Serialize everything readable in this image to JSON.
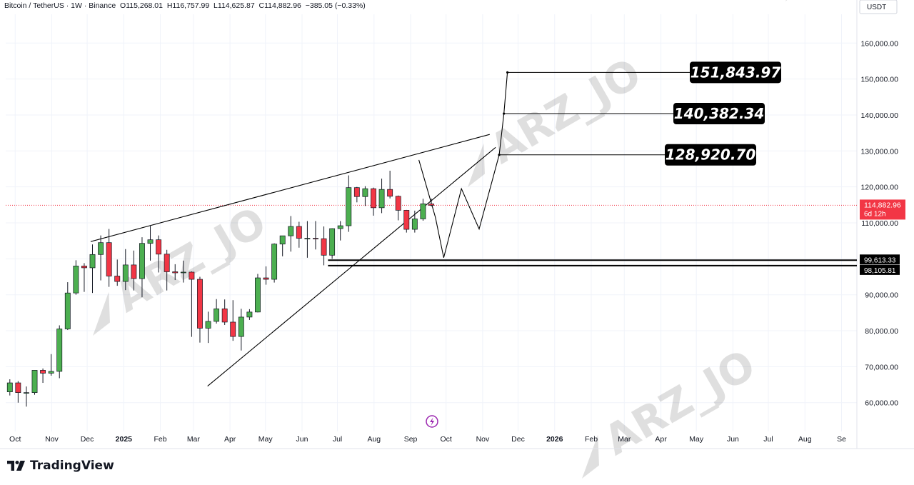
{
  "header": {
    "symbol": "Bitcoin / TetherUS · 1W · Binance",
    "open": "O115,268.01",
    "high": "H116,757.99",
    "low": "L114,625.87",
    "close": "C114,882.96",
    "change": "−385.05 (−0.33%)"
  },
  "currency_label": "USDT",
  "brand": "TradingView",
  "watermark": "ARZ_JO",
  "colors": {
    "up": "#4caf50",
    "down": "#f23645",
    "last_price_bg": "#f23645",
    "line": "#000000",
    "grid": "#f0f3fa",
    "target_bg": "#000000"
  },
  "chart_data": {
    "type": "candlestick",
    "timeframe": "1W",
    "ylim": [
      52000,
      168000
    ],
    "y_ticks": [
      60000,
      70000,
      80000,
      90000,
      100000,
      110000,
      120000,
      130000,
      140000,
      150000,
      160000
    ],
    "y_tick_labels": [
      "60,000.00",
      "70,000.00",
      "80,000.00",
      "90,000.00",
      "100,000.00",
      "110,000.00",
      "120,000.00",
      "130,000.00",
      "140,000.00",
      "150,000.00",
      "160,000.00"
    ],
    "x_start": "2024-09-23",
    "x_end": "2026-09-14",
    "x_ticks": [
      {
        "date": "2024-10-01",
        "label": "Oct"
      },
      {
        "date": "2024-11-01",
        "label": "Nov"
      },
      {
        "date": "2024-12-01",
        "label": "Dec"
      },
      {
        "date": "2025-01-01",
        "label": "2025",
        "bold": true
      },
      {
        "date": "2025-02-01",
        "label": "Feb"
      },
      {
        "date": "2025-03-01",
        "label": "Mar"
      },
      {
        "date": "2025-04-01",
        "label": "Apr"
      },
      {
        "date": "2025-05-01",
        "label": "May"
      },
      {
        "date": "2025-06-01",
        "label": "Jun"
      },
      {
        "date": "2025-07-01",
        "label": "Jul"
      },
      {
        "date": "2025-08-01",
        "label": "Aug"
      },
      {
        "date": "2025-09-01",
        "label": "Sep"
      },
      {
        "date": "2025-10-01",
        "label": "Oct"
      },
      {
        "date": "2025-11-01",
        "label": "Nov"
      },
      {
        "date": "2025-12-01",
        "label": "Dec"
      },
      {
        "date": "2026-01-01",
        "label": "2026",
        "bold": true
      },
      {
        "date": "2026-02-01",
        "label": "Feb"
      },
      {
        "date": "2026-03-01",
        "label": "Mar"
      },
      {
        "date": "2026-04-01",
        "label": "Apr"
      },
      {
        "date": "2026-05-01",
        "label": "May"
      },
      {
        "date": "2026-06-01",
        "label": "Jun"
      },
      {
        "date": "2026-07-01",
        "label": "Jul"
      },
      {
        "date": "2026-08-01",
        "label": "Aug"
      },
      {
        "date": "2026-09-01",
        "label": "Se"
      }
    ],
    "candles": [
      {
        "date": "2024-09-23",
        "o": 63000,
        "h": 66500,
        "l": 62000,
        "c": 65500
      },
      {
        "date": "2024-09-30",
        "o": 65500,
        "h": 66000,
        "l": 60000,
        "c": 62800
      },
      {
        "date": "2024-10-07",
        "o": 62800,
        "h": 64500,
        "l": 58900,
        "c": 62800
      },
      {
        "date": "2024-10-14",
        "o": 62800,
        "h": 69000,
        "l": 62200,
        "c": 69000
      },
      {
        "date": "2024-10-21",
        "o": 69000,
        "h": 69500,
        "l": 65500,
        "c": 68200
      },
      {
        "date": "2024-10-28",
        "o": 68200,
        "h": 73500,
        "l": 67500,
        "c": 68700
      },
      {
        "date": "2024-11-04",
        "o": 68700,
        "h": 81500,
        "l": 66800,
        "c": 80500
      },
      {
        "date": "2024-11-11",
        "o": 80500,
        "h": 93500,
        "l": 80200,
        "c": 90500
      },
      {
        "date": "2024-11-18",
        "o": 90500,
        "h": 99600,
        "l": 90000,
        "c": 98000
      },
      {
        "date": "2024-11-25",
        "o": 98000,
        "h": 98800,
        "l": 90800,
        "c": 97500
      },
      {
        "date": "2024-12-02",
        "o": 97500,
        "h": 104000,
        "l": 90500,
        "c": 101200
      },
      {
        "date": "2024-12-09",
        "o": 101200,
        "h": 106500,
        "l": 94000,
        "c": 104500
      },
      {
        "date": "2024-12-16",
        "o": 104500,
        "h": 108300,
        "l": 92200,
        "c": 95200
      },
      {
        "date": "2024-12-23",
        "o": 95200,
        "h": 99800,
        "l": 92500,
        "c": 93700
      },
      {
        "date": "2024-12-30",
        "o": 93700,
        "h": 102700,
        "l": 91300,
        "c": 98300
      },
      {
        "date": "2025-01-06",
        "o": 98300,
        "h": 102300,
        "l": 91200,
        "c": 94500
      },
      {
        "date": "2025-01-13",
        "o": 94500,
        "h": 106000,
        "l": 89300,
        "c": 104300
      },
      {
        "date": "2025-01-20",
        "o": 104300,
        "h": 109300,
        "l": 99500,
        "c": 105300
      },
      {
        "date": "2025-01-27",
        "o": 105300,
        "h": 106500,
        "l": 96200,
        "c": 101300
      },
      {
        "date": "2025-02-03",
        "o": 101300,
        "h": 102500,
        "l": 91200,
        "c": 96400
      },
      {
        "date": "2025-02-10",
        "o": 96400,
        "h": 98500,
        "l": 94100,
        "c": 96100
      },
      {
        "date": "2025-02-17",
        "o": 96100,
        "h": 99500,
        "l": 93400,
        "c": 96300
      },
      {
        "date": "2025-02-24",
        "o": 96300,
        "h": 96500,
        "l": 78300,
        "c": 94300
      },
      {
        "date": "2025-03-03",
        "o": 94300,
        "h": 95000,
        "l": 76700,
        "c": 80700
      },
      {
        "date": "2025-03-10",
        "o": 80700,
        "h": 85300,
        "l": 76600,
        "c": 82600
      },
      {
        "date": "2025-03-17",
        "o": 82600,
        "h": 88800,
        "l": 82000,
        "c": 86100
      },
      {
        "date": "2025-03-24",
        "o": 86100,
        "h": 88700,
        "l": 81600,
        "c": 82400
      },
      {
        "date": "2025-03-31",
        "o": 82400,
        "h": 88500,
        "l": 77200,
        "c": 78400
      },
      {
        "date": "2025-04-07",
        "o": 78400,
        "h": 86100,
        "l": 74500,
        "c": 83800
      },
      {
        "date": "2025-04-14",
        "o": 83800,
        "h": 86000,
        "l": 83000,
        "c": 85200
      },
      {
        "date": "2025-04-21",
        "o": 85200,
        "h": 95800,
        "l": 85100,
        "c": 94700
      },
      {
        "date": "2025-04-28",
        "o": 94700,
        "h": 97900,
        "l": 92800,
        "c": 94300
      },
      {
        "date": "2025-05-05",
        "o": 94300,
        "h": 104300,
        "l": 93400,
        "c": 104100
      },
      {
        "date": "2025-05-12",
        "o": 104100,
        "h": 105800,
        "l": 100700,
        "c": 106400
      },
      {
        "date": "2025-05-19",
        "o": 106400,
        "h": 111900,
        "l": 102000,
        "c": 109000
      },
      {
        "date": "2025-05-26",
        "o": 109000,
        "h": 110300,
        "l": 103100,
        "c": 105700
      },
      {
        "date": "2025-06-02",
        "o": 105700,
        "h": 110500,
        "l": 100300,
        "c": 105700
      },
      {
        "date": "2025-06-09",
        "o": 105700,
        "h": 110500,
        "l": 102600,
        "c": 105600
      },
      {
        "date": "2025-06-16",
        "o": 105600,
        "h": 109000,
        "l": 98200,
        "c": 101000
      },
      {
        "date": "2025-06-23",
        "o": 101000,
        "h": 108500,
        "l": 100000,
        "c": 108400
      },
      {
        "date": "2025-06-30",
        "o": 108400,
        "h": 110500,
        "l": 105100,
        "c": 109200
      },
      {
        "date": "2025-07-07",
        "o": 109200,
        "h": 123200,
        "l": 107500,
        "c": 119800
      },
      {
        "date": "2025-07-14",
        "o": 119800,
        "h": 120000,
        "l": 115700,
        "c": 117300
      },
      {
        "date": "2025-07-21",
        "o": 117300,
        "h": 120200,
        "l": 114700,
        "c": 119500
      },
      {
        "date": "2025-07-28",
        "o": 119500,
        "h": 119800,
        "l": 112000,
        "c": 114200
      },
      {
        "date": "2025-08-04",
        "o": 114200,
        "h": 122300,
        "l": 112700,
        "c": 119300
      },
      {
        "date": "2025-08-11",
        "o": 119300,
        "h": 124500,
        "l": 116800,
        "c": 117400
      },
      {
        "date": "2025-08-18",
        "o": 117400,
        "h": 117600,
        "l": 110700,
        "c": 113500
      },
      {
        "date": "2025-08-25",
        "o": 113500,
        "h": 113600,
        "l": 107300,
        "c": 108200
      },
      {
        "date": "2025-09-01",
        "o": 108200,
        "h": 113400,
        "l": 107300,
        "c": 111100
      },
      {
        "date": "2025-09-08",
        "o": 111100,
        "h": 116700,
        "l": 110600,
        "c": 115300
      },
      {
        "date": "2025-09-15",
        "o": 115268.01,
        "h": 116757.99,
        "l": 114625.87,
        "c": 114882.96
      }
    ],
    "drawn_lines": [
      {
        "name": "upper-trendline",
        "points": [
          [
            "2024-12-04",
            104800
          ],
          [
            "2025-11-07",
            134600
          ]
        ]
      },
      {
        "name": "lower-trendline",
        "points": [
          [
            "2025-03-13",
            64600
          ],
          [
            "2025-11-12",
            131000
          ]
        ]
      },
      {
        "name": "projection-path",
        "points": [
          [
            "2025-09-08",
            127500
          ],
          [
            "2025-09-22",
            111500
          ],
          [
            "2025-09-29",
            100300
          ],
          [
            "2025-10-14",
            119500
          ],
          [
            "2025-10-29",
            108300
          ],
          [
            "2025-11-15",
            128920.7
          ],
          [
            "2025-11-19",
            140382.34
          ],
          [
            "2025-11-22",
            151843.97
          ]
        ]
      }
    ],
    "horizontal_levels": [
      {
        "value": 99613.33,
        "label": "99,613.33",
        "from": "2025-06-23"
      },
      {
        "value": 98105.81,
        "label": "98,105.81",
        "from": "2025-06-23"
      }
    ],
    "target_levels": [
      {
        "value": 151843.97,
        "label": "151,843.97",
        "from": "2025-11-22"
      },
      {
        "value": 140382.34,
        "label": "140,382.34",
        "from": "2025-11-19"
      },
      {
        "value": 128920.7,
        "label": "128,920.70",
        "from": "2025-11-15"
      }
    ],
    "last_price": {
      "value": 114882.96,
      "label": "114,882.96",
      "countdown": "6d 12h"
    }
  }
}
